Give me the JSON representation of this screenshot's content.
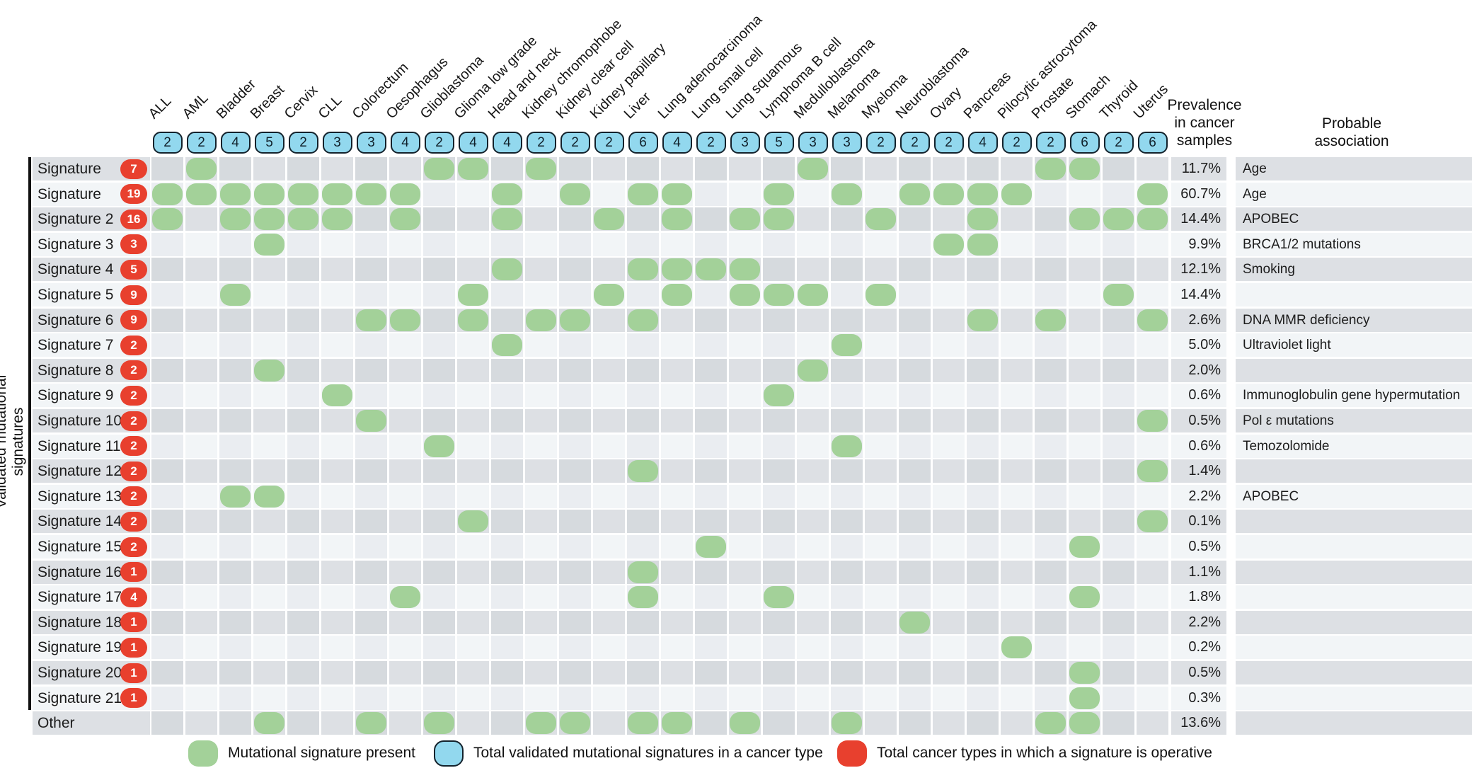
{
  "chart_data": {
    "type": "heatmap",
    "subtype": "presence-matrix",
    "y_axis_label": "Validated mutational signatures",
    "prevalence_header": "Prevalence\nin cancer\nsamples",
    "association_header": "Probable\nassociation",
    "columns": [
      {
        "name": "ALL",
        "total_signatures": 2
      },
      {
        "name": "AML",
        "total_signatures": 2
      },
      {
        "name": "Bladder",
        "total_signatures": 4
      },
      {
        "name": "Breast",
        "total_signatures": 5
      },
      {
        "name": "Cervix",
        "total_signatures": 2
      },
      {
        "name": "CLL",
        "total_signatures": 3
      },
      {
        "name": "Colorectum",
        "total_signatures": 3
      },
      {
        "name": "Oesophagus",
        "total_signatures": 4
      },
      {
        "name": "Glioblastoma",
        "total_signatures": 2
      },
      {
        "name": "Glioma low grade",
        "total_signatures": 4
      },
      {
        "name": "Head and neck",
        "total_signatures": 4
      },
      {
        "name": "Kidney chromophobe",
        "total_signatures": 2
      },
      {
        "name": "Kidney clear cell",
        "total_signatures": 2
      },
      {
        "name": "Kidney papillary",
        "total_signatures": 2
      },
      {
        "name": "Liver",
        "total_signatures": 6
      },
      {
        "name": "Lung adenocarcinoma",
        "total_signatures": 4
      },
      {
        "name": "Lung small cell",
        "total_signatures": 2
      },
      {
        "name": "Lung squamous",
        "total_signatures": 3
      },
      {
        "name": "Lymphoma B cell",
        "total_signatures": 5
      },
      {
        "name": "Medulloblastoma",
        "total_signatures": 3
      },
      {
        "name": "Melanoma",
        "total_signatures": 3
      },
      {
        "name": "Myeloma",
        "total_signatures": 2
      },
      {
        "name": "Neuroblastoma",
        "total_signatures": 2
      },
      {
        "name": "Ovary",
        "total_signatures": 2
      },
      {
        "name": "Pancreas",
        "total_signatures": 4
      },
      {
        "name": "Pilocytic astrocytoma",
        "total_signatures": 2
      },
      {
        "name": "Prostate",
        "total_signatures": 2
      },
      {
        "name": "Stomach",
        "total_signatures": 6
      },
      {
        "name": "Thyroid",
        "total_signatures": 2
      },
      {
        "name": "Uterus",
        "total_signatures": 6
      }
    ],
    "rows": [
      {
        "label": "Signature 1A",
        "operative_in": 7,
        "dot_columns": [
          2,
          9,
          10,
          12,
          20,
          27,
          28
        ],
        "prevalence": "11.7%",
        "association": "Age"
      },
      {
        "label": "Signature 1B",
        "operative_in": 19,
        "dot_columns": [
          1,
          2,
          3,
          4,
          5,
          6,
          7,
          8,
          11,
          13,
          15,
          16,
          19,
          21,
          23,
          24,
          25,
          26,
          30
        ],
        "prevalence": "60.7%",
        "association": "Age"
      },
      {
        "label": "Signature 2",
        "operative_in": 16,
        "dot_columns": [
          1,
          3,
          4,
          5,
          6,
          8,
          11,
          14,
          16,
          18,
          19,
          22,
          25,
          28,
          29,
          30
        ],
        "prevalence": "14.4%",
        "association": "APOBEC"
      },
      {
        "label": "Signature 3",
        "operative_in": 3,
        "dot_columns": [
          4,
          24,
          25
        ],
        "prevalence": "9.9%",
        "association": "BRCA1/2 mutations"
      },
      {
        "label": "Signature 4",
        "operative_in": 5,
        "dot_columns": [
          11,
          15,
          16,
          17,
          18
        ],
        "prevalence": "12.1%",
        "association": "Smoking"
      },
      {
        "label": "Signature 5",
        "operative_in": 9,
        "dot_columns": [
          3,
          10,
          14,
          16,
          18,
          19,
          20,
          22,
          29
        ],
        "prevalence": "14.4%",
        "association": ""
      },
      {
        "label": "Signature 6",
        "operative_in": 9,
        "dot_columns": [
          7,
          8,
          10,
          12,
          13,
          15,
          25,
          27,
          30
        ],
        "prevalence": "2.6%",
        "association": "DNA MMR deficiency"
      },
      {
        "label": "Signature 7",
        "operative_in": 2,
        "dot_columns": [
          11,
          21
        ],
        "prevalence": "5.0%",
        "association": "Ultraviolet light"
      },
      {
        "label": "Signature 8",
        "operative_in": 2,
        "dot_columns": [
          4,
          20
        ],
        "prevalence": "2.0%",
        "association": ""
      },
      {
        "label": "Signature 9",
        "operative_in": 2,
        "dot_columns": [
          6,
          19
        ],
        "prevalence": "0.6%",
        "association": "Immunoglobulin gene hypermutation"
      },
      {
        "label": "Signature 10",
        "operative_in": 2,
        "dot_columns": [
          7,
          30
        ],
        "prevalence": "0.5%",
        "association": "Pol ε mutations"
      },
      {
        "label": "Signature 11",
        "operative_in": 2,
        "dot_columns": [
          9,
          21
        ],
        "prevalence": "0.6%",
        "association": "Temozolomide"
      },
      {
        "label": "Signature 12",
        "operative_in": 2,
        "dot_columns": [
          15,
          30
        ],
        "prevalence": "1.4%",
        "association": ""
      },
      {
        "label": "Signature 13",
        "operative_in": 2,
        "dot_columns": [
          3,
          4
        ],
        "prevalence": "2.2%",
        "association": "APOBEC"
      },
      {
        "label": "Signature 14",
        "operative_in": 2,
        "dot_columns": [
          10,
          30
        ],
        "prevalence": "0.1%",
        "association": ""
      },
      {
        "label": "Signature 15",
        "operative_in": 2,
        "dot_columns": [
          17,
          28
        ],
        "prevalence": "0.5%",
        "association": ""
      },
      {
        "label": "Signature 16",
        "operative_in": 1,
        "dot_columns": [
          15
        ],
        "prevalence": "1.1%",
        "association": ""
      },
      {
        "label": "Signature 17",
        "operative_in": 4,
        "dot_columns": [
          8,
          15,
          19,
          28
        ],
        "prevalence": "1.8%",
        "association": ""
      },
      {
        "label": "Signature 18",
        "operative_in": 1,
        "dot_columns": [
          23
        ],
        "prevalence": "2.2%",
        "association": ""
      },
      {
        "label": "Signature 19",
        "operative_in": 1,
        "dot_columns": [
          26
        ],
        "prevalence": "0.2%",
        "association": ""
      },
      {
        "label": "Signature 20",
        "operative_in": 1,
        "dot_columns": [
          28
        ],
        "prevalence": "0.5%",
        "association": ""
      },
      {
        "label": "Signature 21",
        "operative_in": 1,
        "dot_columns": [
          28
        ],
        "prevalence": "0.3%",
        "association": ""
      },
      {
        "label": "Other",
        "operative_in": null,
        "dot_columns": [
          4,
          7,
          9,
          12,
          13,
          15,
          16,
          18,
          21,
          27,
          28
        ],
        "prevalence": "13.6%",
        "association": ""
      }
    ]
  },
  "legend": [
    {
      "swatch": "green",
      "label": "Mutational signature present"
    },
    {
      "swatch": "blue",
      "label": "Total validated mutational signatures in a cancer type"
    },
    {
      "swatch": "red",
      "label": "Total cancer types in which a signature is operative"
    }
  ],
  "colors": {
    "dot_green": "#a3d199",
    "bubble_blue": "#92d8ee",
    "badge_red": "#e8402e",
    "row_dark_even_col": "#dde0e4",
    "row_dark_odd_col": "#d6dade",
    "row_light_even_col": "#f2f5f7",
    "row_light_odd_col": "#eaedf1"
  }
}
